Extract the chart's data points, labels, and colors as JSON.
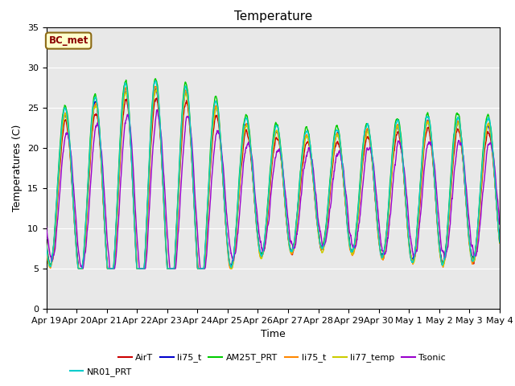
{
  "title": "Temperature",
  "ylabel": "Temperatures (C)",
  "xlabel": "Time",
  "annotation": "BC_met",
  "ylim": [
    0,
    35
  ],
  "background_color": "#ffffff",
  "plot_bg_color": "#e8e8e8",
  "series_colors": {
    "AirT": "#cc0000",
    "li75_t_blue": "#0000cc",
    "AM25T_PRT": "#00cc00",
    "li75_t_orange": "#ff8800",
    "li77_temp": "#cccc00",
    "Tsonic": "#9900cc",
    "NR01_PRT": "#00cccc"
  },
  "legend_entries": [
    {
      "label": "AirT",
      "color": "#cc0000"
    },
    {
      "label": "li75_t",
      "color": "#0000cc"
    },
    {
      "label": "AM25T_PRT",
      "color": "#00cc00"
    },
    {
      "label": "li75_t",
      "color": "#ff8800"
    },
    {
      "label": "li77_temp",
      "color": "#cccc00"
    },
    {
      "label": "Tsonic",
      "color": "#9900cc"
    },
    {
      "label": "NR01_PRT",
      "color": "#00cccc"
    }
  ],
  "x_tick_labels": [
    "Apr 19",
    "Apr 20",
    "Apr 21",
    "Apr 22",
    "Apr 23",
    "Apr 24",
    "Apr 25",
    "Apr 26",
    "Apr 27",
    "Apr 28",
    "Apr 29",
    "Apr 30",
    "May 1",
    "May 2",
    "May 3",
    "May 4"
  ],
  "num_days": 15,
  "pts_per_day": 144,
  "amp_envelope": [
    8.5,
    9.5,
    11.0,
    12.5,
    12.0,
    11.5,
    9.0,
    7.5,
    7.0,
    6.5,
    7.0,
    7.5,
    8.0,
    8.5,
    8.0
  ],
  "base_temp": 14.0,
  "trough_base": 9.0,
  "figsize": [
    6.4,
    4.8
  ],
  "dpi": 100
}
